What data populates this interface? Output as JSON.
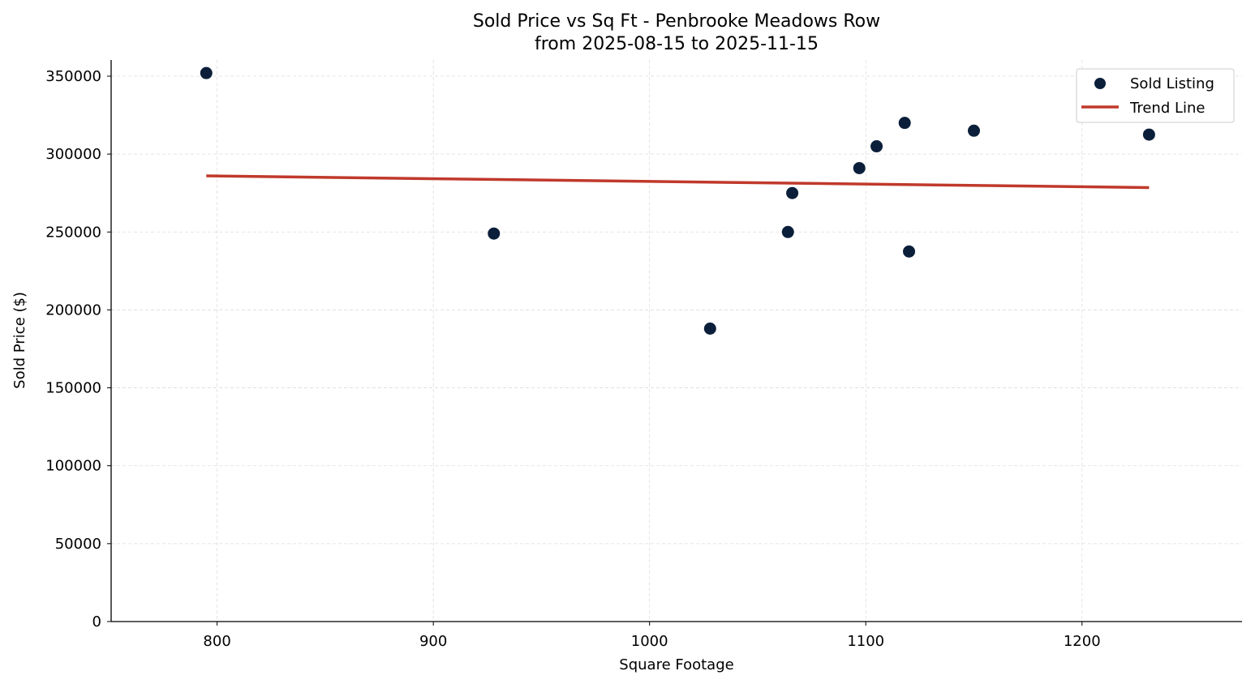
{
  "chart_data": {
    "type": "scatter",
    "title": "Sold Price vs Sq Ft - Penbrooke Meadows Row",
    "subtitle": "from 2025-08-15 to 2025-11-15",
    "xlabel": "Square Footage",
    "ylabel": "Sold Price ($)",
    "xlim": [
      751,
      1274
    ],
    "ylim": [
      0,
      360400
    ],
    "xticks": [
      800,
      900,
      1000,
      1100,
      1200
    ],
    "yticks": [
      0,
      50000,
      100000,
      150000,
      200000,
      250000,
      300000,
      350000
    ],
    "grid": true,
    "legend_position": "top-right",
    "series": [
      {
        "name": "Sold Listing",
        "type": "scatter",
        "color": "#0b1f3a",
        "points": [
          [
            795,
            352000
          ],
          [
            928,
            249000
          ],
          [
            1028,
            188000
          ],
          [
            1064,
            250000
          ],
          [
            1066,
            275000
          ],
          [
            1097,
            291000
          ],
          [
            1105,
            305000
          ],
          [
            1118,
            320000
          ],
          [
            1120,
            237500
          ],
          [
            1150,
            315000
          ],
          [
            1231,
            312500
          ]
        ]
      },
      {
        "name": "Trend Line",
        "type": "line",
        "color": "#c0392b",
        "points": [
          [
            795,
            286000
          ],
          [
            1231,
            278500
          ]
        ]
      }
    ]
  }
}
